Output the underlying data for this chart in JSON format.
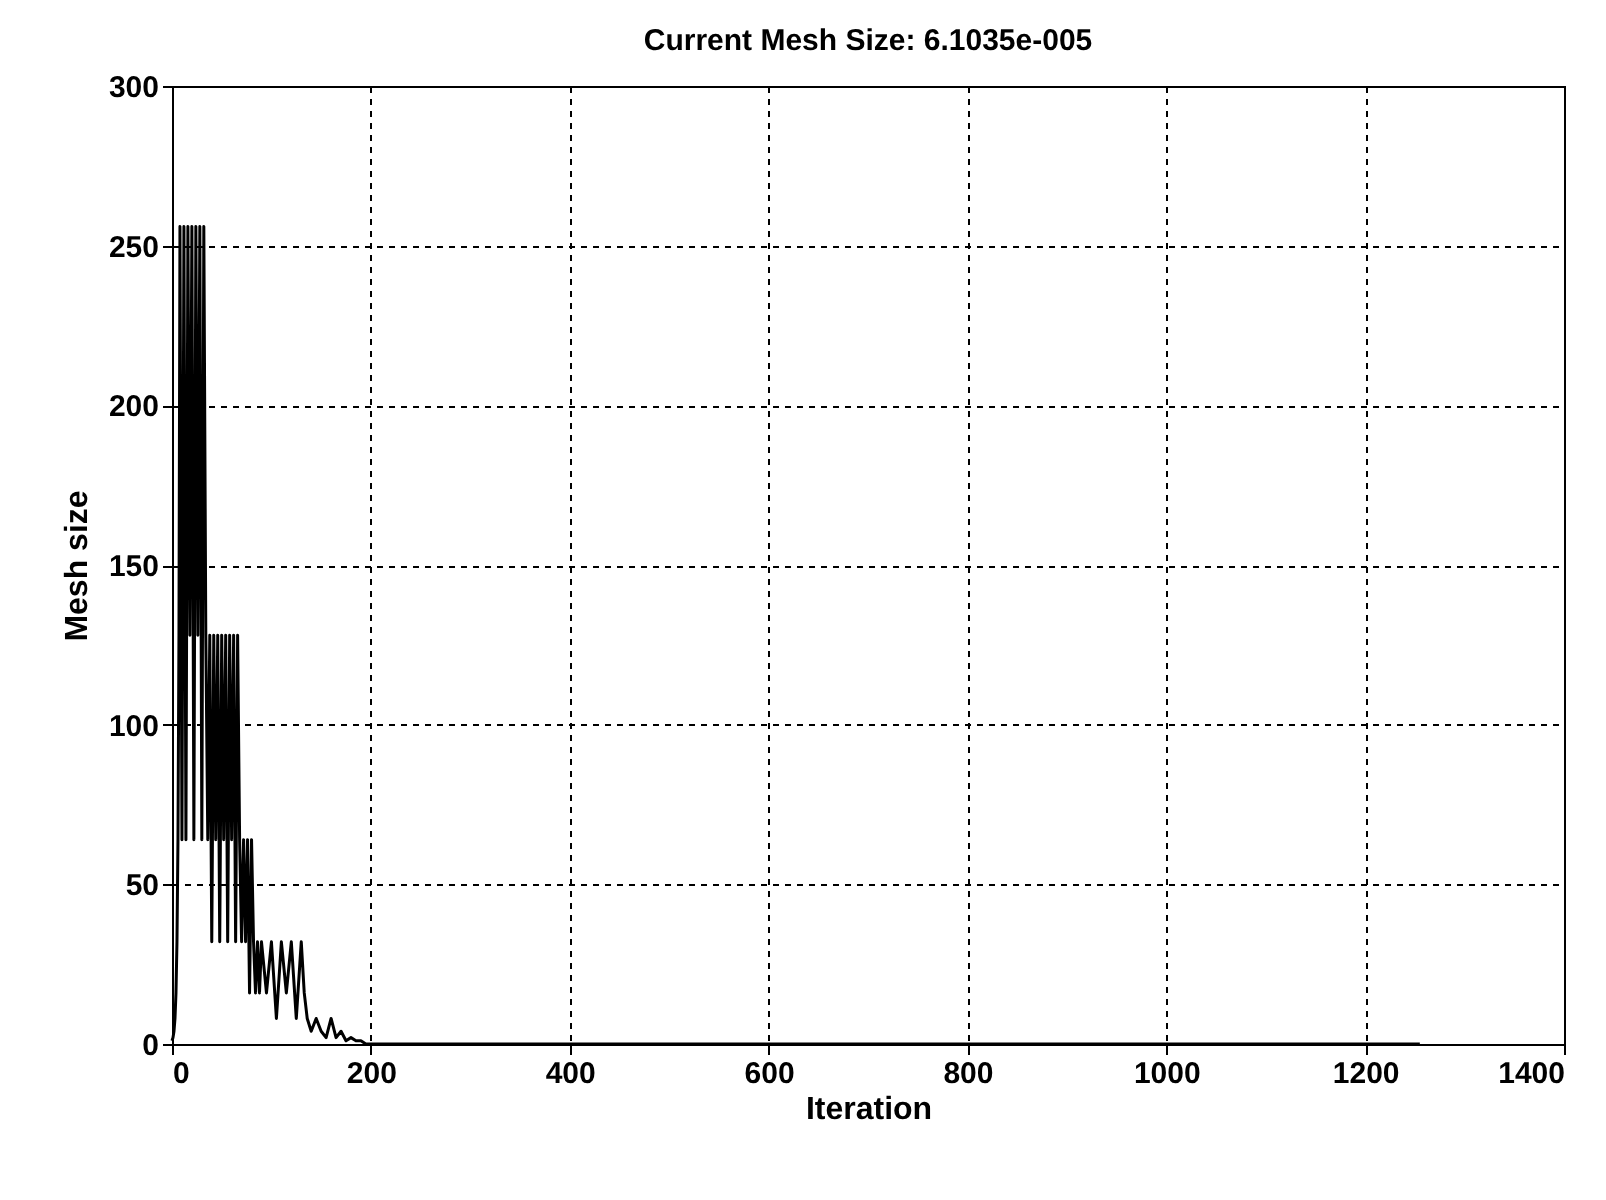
{
  "chart_data": {
    "type": "line",
    "title": "Current Mesh Size: 6.1035e-005",
    "xlabel": "Iteration",
    "ylabel": "Mesh size",
    "x": [
      0,
      1,
      2,
      3,
      4,
      5,
      6,
      7,
      8,
      10,
      12,
      14,
      16,
      18,
      20,
      22,
      24,
      26,
      28,
      30,
      32,
      34,
      36,
      38,
      40,
      42,
      44,
      46,
      48,
      50,
      52,
      54,
      56,
      58,
      60,
      62,
      64,
      66,
      68,
      70,
      72,
      74,
      76,
      78,
      80,
      82,
      84,
      86,
      88,
      90,
      95,
      100,
      105,
      110,
      115,
      120,
      125,
      130,
      133,
      136,
      140,
      145,
      150,
      155,
      160,
      165,
      170,
      175,
      180,
      185,
      190,
      195,
      200,
      205,
      210,
      1255
    ],
    "series": [
      {
        "color": "#000000",
        "values": [
          1,
          2,
          4,
          8,
          16,
          32,
          64,
          128,
          256,
          64,
          256,
          64,
          256,
          128,
          256,
          64,
          256,
          128,
          256,
          64,
          256,
          128,
          64,
          128,
          32,
          128,
          64,
          128,
          32,
          128,
          64,
          128,
          32,
          128,
          64,
          128,
          32,
          128,
          64,
          32,
          64,
          32,
          64,
          16,
          64,
          32,
          16,
          32,
          16,
          32,
          16,
          32,
          8,
          32,
          16,
          32,
          8,
          32,
          16,
          8,
          4,
          8,
          4,
          2,
          8,
          2,
          4,
          1,
          2,
          1,
          1,
          0,
          0,
          0,
          0,
          0
        ]
      }
    ],
    "xlim": [
      0,
      1400
    ],
    "xticks": [
      0,
      200,
      400,
      600,
      800,
      1000,
      1200,
      1400
    ],
    "ylim": [
      0,
      300
    ],
    "yticks": [
      0,
      50,
      100,
      150,
      200,
      250,
      300
    ],
    "grid": true,
    "legend": false,
    "marker": "none",
    "line_style": "solid"
  }
}
